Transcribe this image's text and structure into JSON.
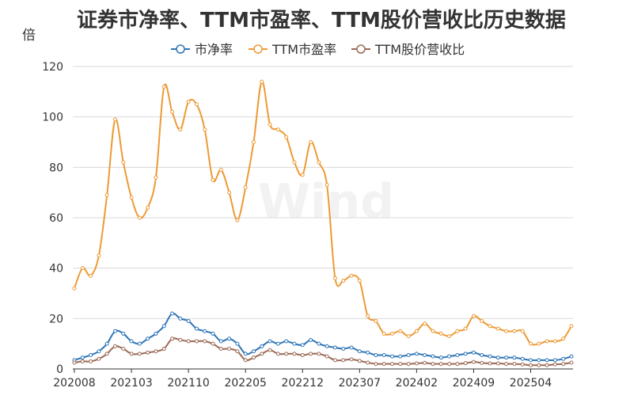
{
  "chart_data": {
    "type": "line",
    "title": "证券市净率、TTM市盈率、TTM股价营收比历史数据",
    "unit": "倍",
    "watermark": "Wind",
    "ylim": [
      0,
      120
    ],
    "yticks": [
      0,
      20,
      40,
      60,
      80,
      100,
      120
    ],
    "xtick_labels": [
      "202008",
      "202103",
      "202110",
      "202205",
      "202212",
      "202307",
      "202402",
      "202409",
      "202504"
    ],
    "x": [
      "2020-08",
      "2020-09",
      "2020-10",
      "2020-11",
      "2020-12",
      "2021-01",
      "2021-02",
      "2021-03",
      "2021-04",
      "2021-05",
      "2021-06",
      "2021-07",
      "2021-08",
      "2021-09",
      "2021-10",
      "2021-11",
      "2021-12",
      "2022-01",
      "2022-02",
      "2022-03",
      "2022-04",
      "2022-05",
      "2022-06",
      "2022-07",
      "2022-08",
      "2022-09",
      "2022-10",
      "2022-11",
      "2022-12",
      "2023-01",
      "2023-02",
      "2023-03",
      "2023-04",
      "2023-05",
      "2023-06",
      "2023-07",
      "2023-08",
      "2023-09",
      "2023-10",
      "2023-11",
      "2023-12",
      "2024-01",
      "2024-02",
      "2024-03",
      "2024-04",
      "2024-05",
      "2024-06",
      "2024-07",
      "2024-08",
      "2024-09",
      "2024-10",
      "2024-11",
      "2024-12",
      "2025-01",
      "2025-02",
      "2025-03",
      "2025-04",
      "2025-05",
      "2025-06",
      "2025-07",
      "2025-08",
      "2025-09"
    ],
    "legend_position": "top",
    "grid": true,
    "series": [
      {
        "name": "市净率",
        "color": "#2e75b6",
        "values": [
          3.5,
          4.5,
          5.5,
          7,
          10,
          15,
          14,
          11,
          10,
          12,
          14,
          17,
          22,
          20,
          19,
          16,
          15,
          14,
          11,
          12,
          10,
          6,
          7,
          9,
          11,
          10,
          11,
          10,
          9.5,
          11.5,
          10,
          9,
          8.5,
          8,
          8.5,
          7,
          6.5,
          5.5,
          5.5,
          5,
          5,
          5.5,
          6,
          5.5,
          5,
          4.5,
          5,
          5.5,
          6,
          6.5,
          5.5,
          5,
          4.5,
          4.5,
          4.5,
          4,
          3.5,
          3.5,
          3.5,
          3.5,
          4,
          5
        ]
      },
      {
        "name": "TTM市盈率",
        "color": "#ed9a35",
        "values": [
          32,
          40,
          37,
          45,
          69,
          99,
          82,
          68,
          60,
          64,
          76,
          112,
          102,
          95,
          106,
          105,
          95,
          75,
          79,
          70,
          59,
          72,
          90,
          114,
          97,
          95,
          92,
          82,
          77,
          90,
          82,
          73,
          36,
          35,
          37,
          35,
          21,
          19,
          14,
          14,
          15,
          13,
          15,
          18,
          15,
          14,
          13,
          15,
          16,
          21,
          19,
          17,
          16,
          15,
          15,
          15,
          10,
          10,
          11,
          11,
          12,
          17
        ]
      },
      {
        "name": "TTM股价营收比",
        "color": "#9b6a56",
        "values": [
          2.5,
          3,
          3,
          4,
          6,
          9,
          8,
          6,
          6,
          6.5,
          7,
          8,
          12,
          11.5,
          11,
          11,
          11,
          10,
          8,
          8,
          7,
          3.5,
          4.5,
          6,
          7.5,
          6,
          6,
          6,
          5.5,
          6,
          6,
          5,
          3.5,
          3.5,
          3.8,
          3.2,
          2.5,
          2,
          2,
          2,
          2,
          2,
          2.2,
          2.4,
          2,
          2,
          2,
          2,
          2.3,
          2.8,
          2.4,
          2.2,
          2.2,
          2,
          2,
          1.8,
          1.5,
          1.5,
          1.5,
          1.8,
          2,
          2.5
        ]
      }
    ]
  }
}
